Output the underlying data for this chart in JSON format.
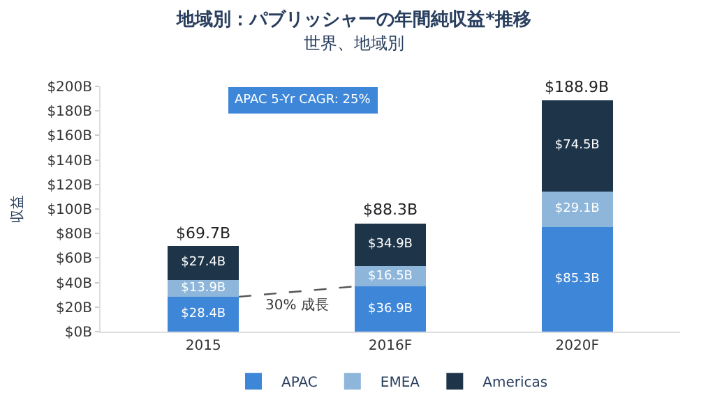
{
  "chart_data": {
    "type": "bar",
    "title": "地域別：パブリッシャーの年間純収益*推移",
    "subtitle": "世界、地域別",
    "ylabel": "収益",
    "categories": [
      "2015",
      "2016F",
      "2020F"
    ],
    "stacked": true,
    "series": [
      {
        "name": "APAC",
        "color": "#3d86d8",
        "values": [
          28.4,
          36.9,
          85.3
        ],
        "value_labels": [
          "$28.4B",
          "$36.9B",
          "$85.3B"
        ]
      },
      {
        "name": "EMEA",
        "color": "#8db6da",
        "values": [
          13.9,
          16.5,
          29.1
        ],
        "value_labels": [
          "$13.9B",
          "$16.5B",
          "$29.1B"
        ]
      },
      {
        "name": "Americas",
        "color": "#1e3549",
        "values": [
          27.4,
          34.9,
          74.5
        ],
        "value_labels": [
          "$27.4B",
          "$34.9B",
          "$74.5B"
        ]
      }
    ],
    "totals": [
      "$69.7B",
      "$88.3B",
      "$188.9B"
    ],
    "ylim": [
      0,
      200
    ],
    "yticks": [
      {
        "value": 0,
        "label": "$0B"
      },
      {
        "value": 20,
        "label": "$20B"
      },
      {
        "value": 40,
        "label": "$40B"
      },
      {
        "value": 60,
        "label": "$60B"
      },
      {
        "value": 80,
        "label": "$80B"
      },
      {
        "value": 100,
        "label": "$100B"
      },
      {
        "value": 120,
        "label": "$120B"
      },
      {
        "value": 140,
        "label": "$140B"
      },
      {
        "value": 160,
        "label": "$160B"
      },
      {
        "value": 180,
        "label": "$180B"
      },
      {
        "value": 200,
        "label": "$200B"
      }
    ],
    "annotations": [
      "APAC 5-Yr CAGR: 25%",
      "30% 成長"
    ],
    "legend": "bottom"
  }
}
